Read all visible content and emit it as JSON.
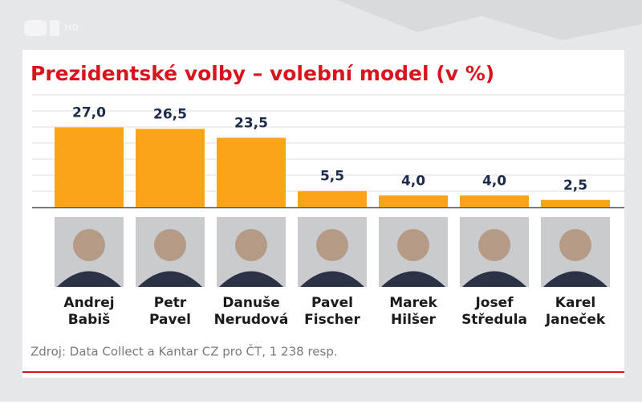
{
  "chart_data": {
    "type": "bar",
    "title": "Prezidentské volby – volební model (v %)",
    "categories": [
      [
        "Andrej",
        "Babiš"
      ],
      [
        "Petr",
        "Pavel"
      ],
      [
        "Danuše",
        "Nerudová"
      ],
      [
        "Pavel",
        "Fischer"
      ],
      [
        "Marek",
        "Hilšer"
      ],
      [
        "Josef",
        "Středula"
      ],
      [
        "Karel",
        "Janeček"
      ]
    ],
    "values": [
      27,
      26.5,
      23.5,
      5.5,
      4,
      4,
      2.5
    ],
    "value_labels": [
      "27,0",
      "26,5",
      "23,5",
      "5,5",
      "4,0",
      "4,0",
      "2,5"
    ],
    "color": "#fba41a",
    "ylim": [
      0,
      38
    ],
    "source": "Zdroj: Data Collect a Kantar CZ pro ČT, 1 238 resp.",
    "channel_logo": "HD"
  }
}
